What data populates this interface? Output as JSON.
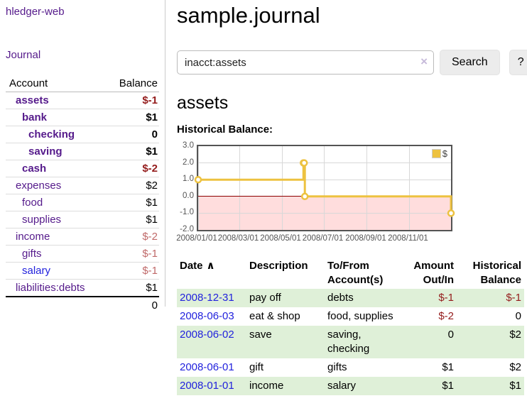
{
  "sidebar": {
    "app_title": "hledger-web",
    "journal_link": "Journal",
    "table": {
      "headers": {
        "account": "Account",
        "balance": "Balance"
      },
      "rows": [
        {
          "account": "assets",
          "balance": "$-1",
          "level": 1,
          "bold": true
        },
        {
          "account": "bank",
          "balance": "$1",
          "level": 2,
          "bold": true
        },
        {
          "account": "checking",
          "balance": "0",
          "level": 3,
          "bold": true
        },
        {
          "account": "saving",
          "balance": "$1",
          "level": 3,
          "bold": true
        },
        {
          "account": "cash",
          "balance": "$-2",
          "level": 2,
          "bold": true
        },
        {
          "account": "expenses",
          "balance": "$2",
          "level": 1,
          "bold": false
        },
        {
          "account": "food",
          "balance": "$1",
          "level": 2,
          "bold": false
        },
        {
          "account": "supplies",
          "balance": "$1",
          "level": 2,
          "bold": false
        },
        {
          "account": "income",
          "balance": "$-2",
          "level": 1,
          "bold": false
        },
        {
          "account": "gifts",
          "balance": "$-1",
          "level": 2,
          "bold": false
        },
        {
          "account": "salary",
          "balance": "$-1",
          "level": 2,
          "bold": false,
          "unvisited": true
        },
        {
          "account": "liabilities:debts",
          "balance": "$1",
          "level": 1,
          "bold": false
        }
      ],
      "total": "0"
    }
  },
  "main": {
    "title": "sample.journal",
    "search": {
      "value": "inacct:assets",
      "clear_icon": "×",
      "button_label": "Search",
      "help_label": "?"
    },
    "account_heading": "assets",
    "chart_label": "Historical Balance:",
    "register": {
      "headers": {
        "date": "Date",
        "sort_icon": "∧",
        "description": "Description",
        "tofrom_line1": "To/From",
        "tofrom_line2": "Account(s)",
        "amount_line1": "Amount",
        "amount_line2": "Out/In",
        "balance_line1": "Historical",
        "balance_line2": "Balance"
      },
      "rows": [
        {
          "date": "2008-12-31",
          "description": "pay off",
          "accounts": "debts",
          "amount": "$-1",
          "balance": "$-1"
        },
        {
          "date": "2008-06-03",
          "description": "eat & shop",
          "accounts": "food, supplies",
          "amount": "$-2",
          "balance": "0"
        },
        {
          "date": "2008-06-02",
          "description": "save",
          "accounts": "saving, checking",
          "amount": "0",
          "balance": "$2"
        },
        {
          "date": "2008-06-01",
          "description": "gift",
          "accounts": "gifts",
          "amount": "$1",
          "balance": "$2"
        },
        {
          "date": "2008-01-01",
          "description": "income",
          "accounts": "salary",
          "amount": "$1",
          "balance": "$1"
        }
      ]
    }
  },
  "chart_data": {
    "type": "line",
    "step": true,
    "title": "Historical Balance",
    "series": [
      {
        "name": "$",
        "points": [
          [
            "2008/01/01",
            1
          ],
          [
            "2008/06/01",
            2
          ],
          [
            "2008/06/02",
            2
          ],
          [
            "2008/06/03",
            0
          ],
          [
            "2008/12/31",
            -1
          ]
        ]
      }
    ],
    "x_ticks": [
      "2008/01/01",
      "2008/03/01",
      "2008/05/01",
      "2008/07/01",
      "2008/09/01",
      "2008/11/01"
    ],
    "y_ticks": [
      3.0,
      2.0,
      1.0,
      0.0,
      -1.0,
      -2.0
    ],
    "xlim": [
      "2008/01/01",
      "2008/12/31"
    ],
    "ylim": [
      -2,
      3
    ],
    "grid": true,
    "legend_label": "$",
    "legend_position": "top-right",
    "colors": {
      "line": "#edc240",
      "marker_fill": "#ffffff",
      "negative_region": "#ffdddd",
      "zero_line": "#8b0000",
      "grid": "#d8d8d8",
      "border": "#545454"
    }
  }
}
